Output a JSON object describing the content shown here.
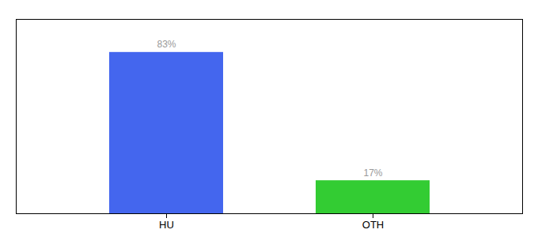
{
  "chart_data": {
    "type": "bar",
    "categories": [
      "HU",
      "OTH"
    ],
    "values": [
      83,
      17
    ],
    "value_labels": [
      "83%",
      "17%"
    ],
    "colors": [
      "#4466ee",
      "#33cc33"
    ],
    "ylim": [
      0,
      100
    ],
    "yticks": [],
    "grid": false,
    "tick_labels": "x",
    "data_labels": true
  }
}
